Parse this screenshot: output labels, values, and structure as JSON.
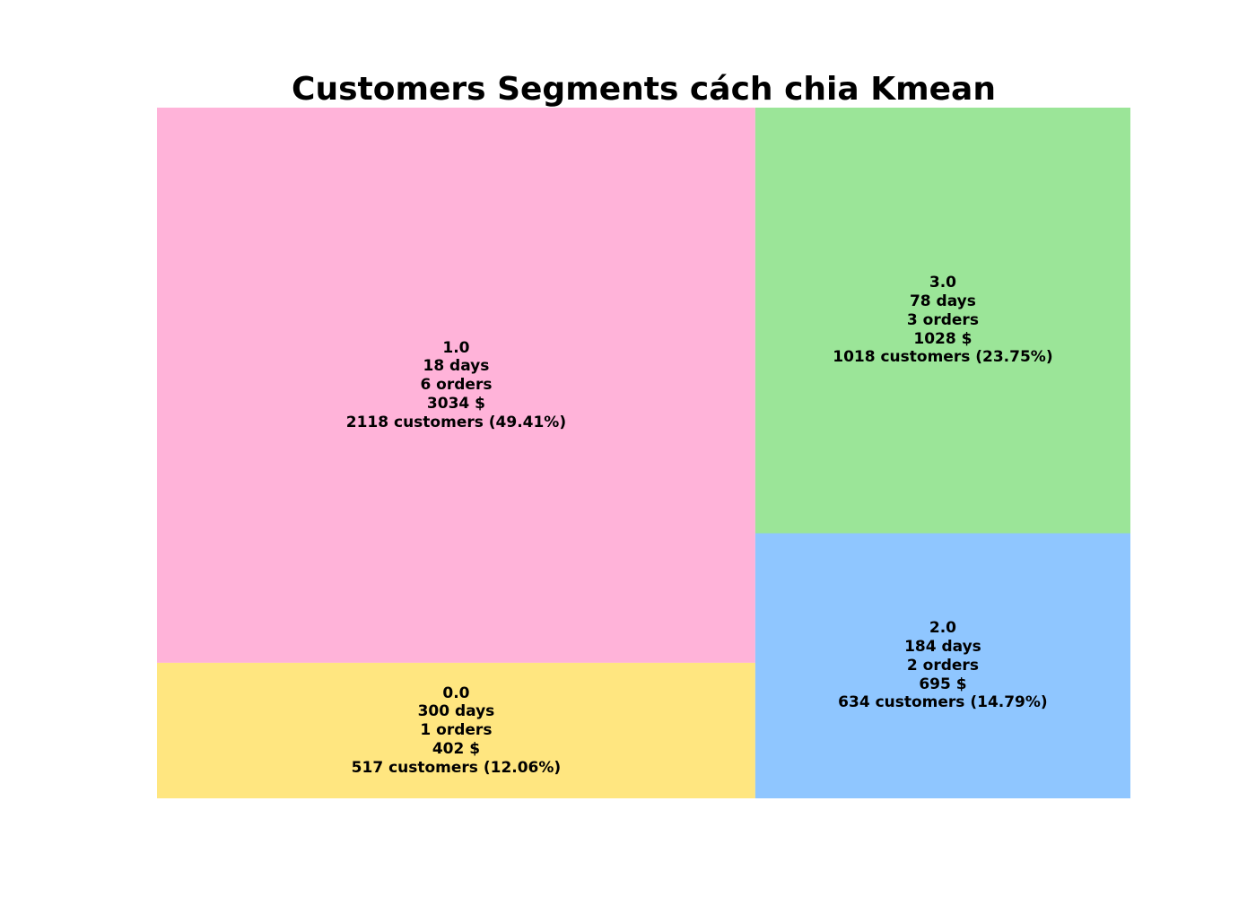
{
  "chart_data": {
    "type": "treemap",
    "title": "Customers Segments cách chia Kmean",
    "segments": [
      {
        "id": "1.0",
        "days": "18 days",
        "orders": "6 orders",
        "amount": "3034 $",
        "customers": "2118 customers (49.41%)",
        "count": 2118,
        "percent": 49.41,
        "color": "#FFB3D9"
      },
      {
        "id": "0.0",
        "days": "300 days",
        "orders": "1 orders",
        "amount": "402 $",
        "customers": "517 customers (12.06%)",
        "count": 517,
        "percent": 12.06,
        "color": "#FFE680"
      },
      {
        "id": "3.0",
        "days": "78 days",
        "orders": "3 orders",
        "amount": "1028 $",
        "customers": "1018 customers (23.75%)",
        "count": 1018,
        "percent": 23.75,
        "color": "#9BE598"
      },
      {
        "id": "2.0",
        "days": "184 days",
        "orders": "2 orders",
        "amount": "695 $",
        "customers": "634 customers (14.79%)",
        "count": 634,
        "percent": 14.79,
        "color": "#8FC6FF"
      }
    ]
  }
}
